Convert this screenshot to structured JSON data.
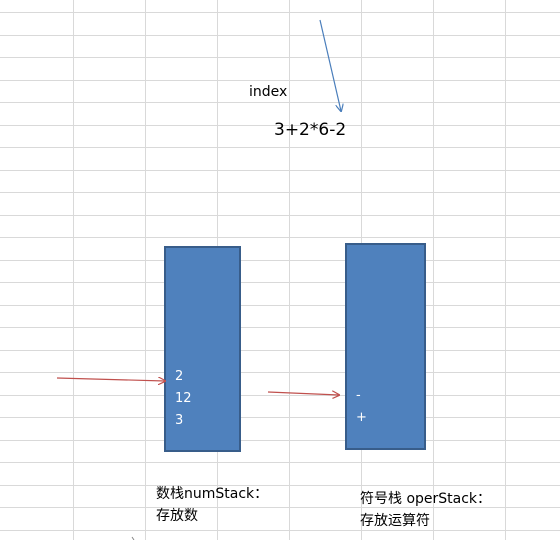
{
  "labels": {
    "index": "index",
    "expression": "3+2*6-2"
  },
  "num_stack": {
    "items": [
      "2",
      "12",
      "3"
    ],
    "caption_line1": "数栈numStack：",
    "caption_line2": "存放数"
  },
  "oper_stack": {
    "items": [
      "-",
      "+"
    ],
    "caption_line1": "符号栈 operStack：",
    "caption_line2": "存放运算符"
  },
  "colors": {
    "stack_fill": "#4f81bd",
    "stack_border": "#385d8a",
    "index_arrow": "#4a7ebb",
    "pointer_arrow": "#c0504d",
    "grid": "#d9d9d9"
  }
}
